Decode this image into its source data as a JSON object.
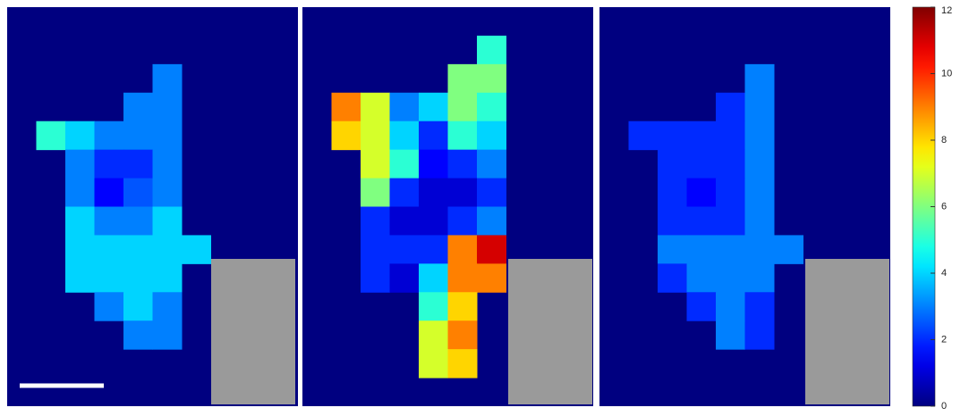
{
  "chart_data": {
    "type": "heatmap",
    "clim": [
      0,
      12
    ],
    "colorbar_ticks": [
      0,
      2,
      4,
      6,
      8,
      10,
      12
    ],
    "panels": [
      {
        "values": [
          [
            null,
            null,
            null,
            null,
            null,
            null,
            null,
            null,
            null,
            null
          ],
          [
            null,
            null,
            null,
            null,
            null,
            null,
            null,
            null,
            null,
            null
          ],
          [
            null,
            null,
            null,
            null,
            null,
            3,
            null,
            null,
            null,
            null
          ],
          [
            null,
            null,
            null,
            null,
            3,
            3,
            null,
            null,
            null,
            null
          ],
          [
            null,
            5,
            4,
            3,
            3,
            3,
            null,
            null,
            null,
            null
          ],
          [
            null,
            null,
            3,
            2,
            2,
            3,
            null,
            null,
            null,
            null
          ],
          [
            null,
            null,
            3,
            1.5,
            2.5,
            3,
            null,
            null,
            null,
            null
          ],
          [
            null,
            null,
            4,
            3,
            3,
            4,
            null,
            null,
            null,
            null
          ],
          [
            null,
            null,
            4,
            4,
            4,
            4,
            4,
            null,
            null,
            null
          ],
          [
            null,
            null,
            4,
            4,
            4,
            4,
            null,
            null,
            null,
            null
          ],
          [
            null,
            null,
            null,
            3,
            4,
            3,
            null,
            null,
            null,
            null
          ],
          [
            null,
            null,
            null,
            null,
            3,
            3,
            null,
            null,
            null,
            null
          ],
          [
            null,
            null,
            null,
            null,
            null,
            null,
            null,
            null,
            null,
            null
          ],
          [
            null,
            null,
            null,
            null,
            null,
            null,
            null,
            null,
            null,
            null
          ]
        ]
      },
      {
        "values": [
          [
            null,
            null,
            null,
            null,
            null,
            null,
            null,
            null,
            null,
            null
          ],
          [
            null,
            null,
            null,
            null,
            null,
            null,
            5,
            null,
            null,
            null
          ],
          [
            null,
            null,
            null,
            null,
            null,
            6,
            6,
            null,
            null,
            null
          ],
          [
            null,
            9,
            7,
            3,
            4,
            6,
            5,
            null,
            null,
            null
          ],
          [
            null,
            8,
            7,
            4,
            2,
            5,
            4,
            null,
            null,
            null
          ],
          [
            null,
            null,
            7,
            5,
            1.5,
            2,
            3,
            null,
            null,
            null
          ],
          [
            null,
            null,
            6,
            2,
            1,
            1,
            2,
            null,
            null,
            null
          ],
          [
            null,
            null,
            2,
            1,
            1,
            2,
            3,
            null,
            null,
            null
          ],
          [
            null,
            null,
            2,
            2,
            2,
            9,
            11,
            null,
            null,
            null
          ],
          [
            null,
            null,
            2,
            1,
            4,
            9,
            9,
            null,
            null,
            null
          ],
          [
            null,
            null,
            null,
            null,
            5,
            8,
            null,
            null,
            null,
            null
          ],
          [
            null,
            null,
            null,
            null,
            7,
            9,
            null,
            null,
            null,
            null
          ],
          [
            null,
            null,
            null,
            null,
            7,
            8,
            null,
            null,
            null,
            null
          ],
          [
            null,
            null,
            null,
            null,
            null,
            null,
            null,
            null,
            null,
            null
          ]
        ]
      },
      {
        "values": [
          [
            null,
            null,
            null,
            null,
            null,
            null,
            null,
            null,
            null,
            null
          ],
          [
            null,
            null,
            null,
            null,
            null,
            null,
            null,
            null,
            null,
            null
          ],
          [
            null,
            null,
            null,
            null,
            null,
            3,
            null,
            null,
            null,
            null
          ],
          [
            null,
            null,
            null,
            null,
            2,
            3,
            null,
            null,
            null,
            null
          ],
          [
            null,
            2,
            2,
            2,
            2,
            3,
            null,
            null,
            null,
            null
          ],
          [
            null,
            null,
            2,
            2,
            2,
            3,
            null,
            null,
            null,
            null
          ],
          [
            null,
            null,
            2,
            1.5,
            2,
            3,
            null,
            null,
            null,
            null
          ],
          [
            null,
            null,
            2,
            2,
            2,
            3,
            null,
            null,
            null,
            null
          ],
          [
            null,
            null,
            3,
            3,
            3,
            3,
            3,
            null,
            null,
            null
          ],
          [
            null,
            null,
            2,
            3,
            3,
            3,
            null,
            null,
            null,
            null
          ],
          [
            null,
            null,
            null,
            2,
            3,
            2,
            null,
            null,
            null,
            null
          ],
          [
            null,
            null,
            null,
            null,
            3,
            2,
            null,
            null,
            null,
            null
          ],
          [
            null,
            null,
            null,
            null,
            null,
            null,
            null,
            null,
            null,
            null
          ],
          [
            null,
            null,
            null,
            null,
            null,
            null,
            null,
            null,
            null,
            null
          ]
        ]
      }
    ]
  }
}
